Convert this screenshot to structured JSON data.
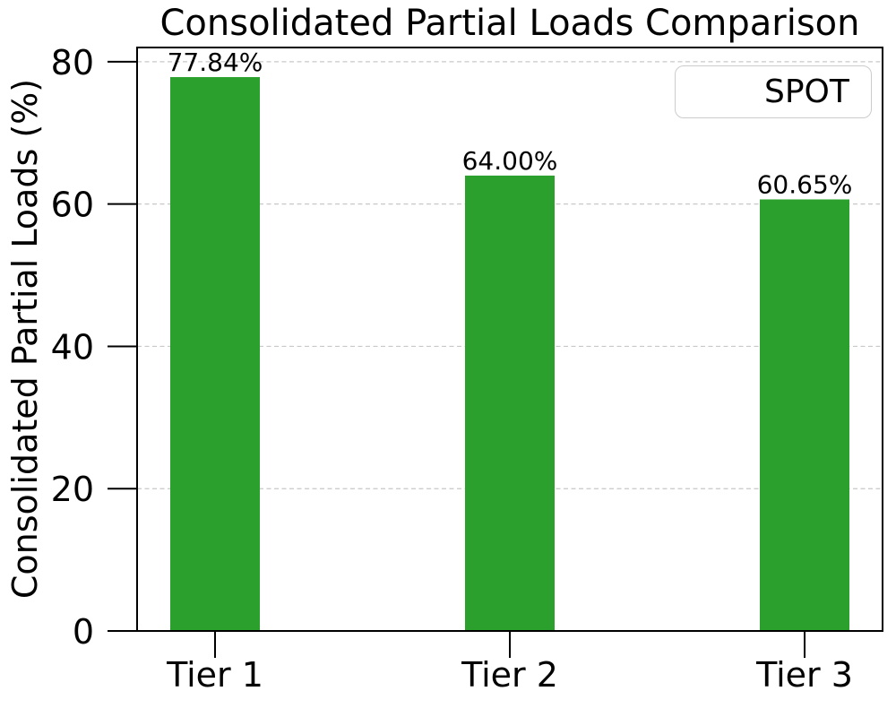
{
  "chart_data": {
    "type": "bar",
    "title": "Consolidated Partial Loads Comparison",
    "xlabel": "",
    "ylabel": "Consolidated Partial Loads (%)",
    "categories": [
      "Tier 1",
      "Tier 2",
      "Tier 3"
    ],
    "series": [
      {
        "name": "SPOT",
        "color": "#2ca02c",
        "values": [
          77.84,
          64.0,
          60.65
        ]
      }
    ],
    "value_labels": [
      "77.84%",
      "64.00%",
      "60.65%"
    ],
    "yticks": [
      0,
      20,
      40,
      60,
      80
    ],
    "ylim": [
      0,
      82
    ],
    "grid": "horizontal dashed",
    "legend_position": "upper right"
  },
  "legend": {
    "label": "SPOT"
  },
  "colors": {
    "bar": "#2ca02c",
    "grid": "#c8c8c8",
    "axis": "#000000",
    "text": "#000000",
    "legend_border": "#cccccc",
    "background": "#ffffff"
  }
}
